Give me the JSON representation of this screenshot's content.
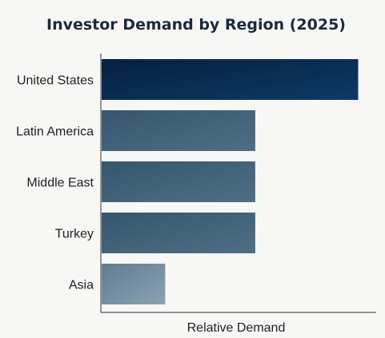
{
  "chart_data": {
    "type": "bar",
    "orientation": "horizontal",
    "title": "Investor Demand by Region (2025)",
    "xlabel": "Relative Demand",
    "ylabel": "",
    "categories": [
      "United States",
      "Latin America",
      "Middle East",
      "Turkey",
      "Asia"
    ],
    "values": [
      10,
      6,
      6,
      6,
      2.5
    ],
    "xlim": [
      0,
      10.7
    ],
    "grid": false,
    "legend": "none",
    "colors": [
      "#0b2a4d",
      "#3e5f77",
      "#3e5f77",
      "#45667d",
      "#6f8ba0"
    ]
  }
}
